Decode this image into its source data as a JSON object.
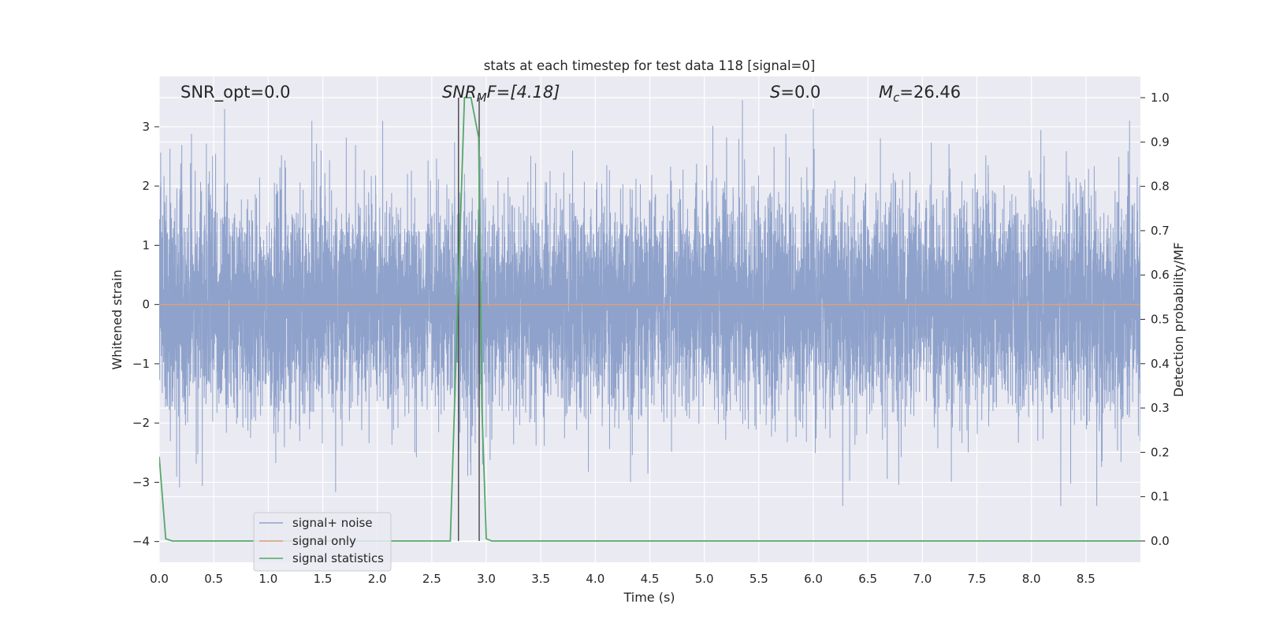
{
  "chart_data": {
    "type": "line",
    "title": "stats at each timestep for test data 118 [signal=0]",
    "xlabel": "Time (s)",
    "ylabel": "Whitened strain",
    "y2label": "Detection probability/MF",
    "xlim": [
      0,
      9
    ],
    "ylim": [
      -4.35,
      3.85
    ],
    "y2lim": [
      -0.048,
      1.048
    ],
    "x_ticks": [
      0.0,
      0.5,
      1.0,
      1.5,
      2.0,
      2.5,
      3.0,
      3.5,
      4.0,
      4.5,
      5.0,
      5.5,
      6.0,
      6.5,
      7.0,
      7.5,
      8.0,
      8.5
    ],
    "x_tick_labels": [
      "0.0",
      "0.5",
      "1.0",
      "1.5",
      "2.0",
      "2.5",
      "3.0",
      "3.5",
      "4.0",
      "4.5",
      "5.0",
      "5.5",
      "6.0",
      "6.5",
      "7.0",
      "7.5",
      "8.0",
      "8.5"
    ],
    "y_ticks": [
      3,
      2,
      1,
      0,
      -1,
      -2,
      -3,
      -4
    ],
    "y_tick_labels": [
      "3",
      "2",
      "1",
      "0",
      "−1",
      "−2",
      "−3",
      "−4"
    ],
    "y2_ticks": [
      1.0,
      0.9,
      0.8,
      0.7,
      0.6,
      0.5,
      0.4,
      0.3,
      0.2,
      0.1,
      0.0
    ],
    "y2_tick_labels": [
      "1.0",
      "0.9",
      "0.8",
      "0.7",
      "0.6",
      "0.5",
      "0.4",
      "0.3",
      "0.2",
      "0.1",
      "0.0"
    ],
    "grid": true,
    "legend_position": "bottom-left",
    "annotations": {
      "snr_opt": "SNR_opt=0.0",
      "snr_mf_main": "SNR",
      "snr_mf_sub": "M",
      "snr_mf_rest": "F=[4.18]",
      "s_main": "S",
      "s_rest": "=0.0",
      "mc_main": "M",
      "mc_sub": "c",
      "mc_rest": "=26.46"
    },
    "vlines": [
      2.745,
      2.935
    ],
    "series": [
      {
        "name": "signal+ noise",
        "color": "#8fa2cb",
        "kind": "noise",
        "sample_rate": 1024,
        "amplitude_std": 0.9,
        "notable_peaks": [
          [
            0.6,
            3.3
          ],
          [
            1.4,
            3.1
          ],
          [
            2.05,
            3.1
          ],
          [
            5.35,
            3.45
          ],
          [
            6.0,
            3.3
          ],
          [
            6.27,
            -3.4
          ],
          [
            8.27,
            -3.4
          ],
          [
            8.6,
            -3.4
          ],
          [
            8.9,
            3.1
          ]
        ]
      },
      {
        "name": "signal only",
        "color": "#dd9f7a",
        "kind": "line",
        "x": [
          0,
          9
        ],
        "y": [
          0,
          0
        ]
      },
      {
        "name": "signal statistics",
        "color": "#55a868",
        "kind": "line",
        "axis": "right",
        "x": [
          0.0,
          0.06,
          0.12,
          2.67,
          2.74,
          2.8,
          2.86,
          2.93,
          2.96,
          3.0,
          3.05,
          9.0
        ],
        "y": [
          0.19,
          0.005,
          0.0,
          0.0,
          0.55,
          1.0,
          1.0,
          0.91,
          0.3,
          0.005,
          0.0,
          0.0
        ]
      }
    ]
  }
}
